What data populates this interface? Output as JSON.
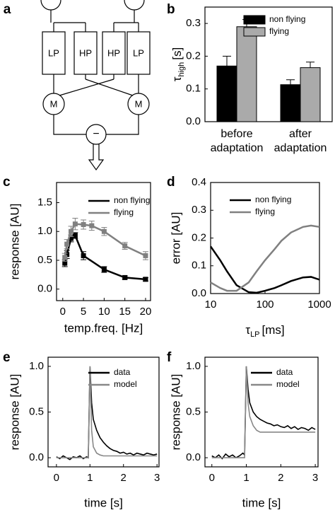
{
  "diagram": {
    "label": "a",
    "blocks": [
      "LP",
      "HP",
      "HP",
      "LP"
    ],
    "multipliers": [
      "M",
      "M"
    ],
    "subtractor": "−"
  },
  "chart_data": [
    {
      "type": "bar",
      "panel_label": "b",
      "ylabel": {
        "symbol": "τ",
        "subscript": "high",
        "unit": "[s]"
      },
      "categories": [
        "before adaptation",
        "after adaptation"
      ],
      "series": [
        {
          "name": "non flying",
          "color": "#000000",
          "values": [
            0.17,
            0.113
          ],
          "errors": [
            0.03,
            0.015
          ]
        },
        {
          "name": "flying",
          "color": "#aaaaaa",
          "values": [
            0.29,
            0.165
          ],
          "errors": [
            0.022,
            0.017
          ]
        }
      ],
      "ylim": [
        0,
        0.35
      ],
      "yticks": [
        {
          "value": 0,
          "label": "0.0"
        },
        {
          "value": 0.1,
          "label": "0.1"
        },
        {
          "value": 0.2,
          "label": "0.2"
        },
        {
          "value": 0.3,
          "label": "0.3"
        }
      ]
    },
    {
      "type": "line",
      "panel_label": "c",
      "xlabel": "temp.freq. [Hz]",
      "ylabel": "response [AU]",
      "marker": "square",
      "series": [
        {
          "name": "non flying",
          "color": "#000000",
          "x": [
            0.5,
            1,
            2,
            3,
            5,
            10,
            15,
            20
          ],
          "values": [
            0.45,
            0.6,
            0.88,
            0.93,
            0.58,
            0.34,
            0.2,
            0.17
          ],
          "errors": [
            0.06,
            0.07,
            0.06,
            0.05,
            0.07,
            0.05,
            0.03,
            0.03
          ]
        },
        {
          "name": "flying",
          "color": "#808080",
          "x": [
            0.5,
            1,
            2,
            3,
            5,
            7,
            10,
            15,
            20
          ],
          "values": [
            0.55,
            0.78,
            1.0,
            1.13,
            1.12,
            1.1,
            1.0,
            0.75,
            0.58
          ],
          "errors": [
            0.07,
            0.08,
            0.09,
            0.1,
            0.08,
            0.08,
            0.07,
            0.06,
            0.07
          ]
        }
      ],
      "xlim": [
        -1.5,
        21.2
      ],
      "xticks": [
        0,
        5,
        10,
        15,
        20
      ],
      "ylim": [
        -0.2,
        1.85
      ],
      "yticks": [
        {
          "value": 0,
          "label": "0.0"
        },
        {
          "value": 0.5,
          "label": "0.5"
        },
        {
          "value": 1,
          "label": "1.0"
        },
        {
          "value": 1.5,
          "label": "1.5"
        }
      ]
    },
    {
      "type": "line",
      "panel_label": "d",
      "xlabel": {
        "symbol": "τ",
        "subscript": "LP",
        "unit": "[ms]"
      },
      "ylabel": "error [AU]",
      "xscale": "log",
      "x": [
        10,
        15,
        20,
        30,
        50,
        70,
        100,
        150,
        200,
        300,
        500,
        700,
        1000
      ],
      "series": [
        {
          "name": "non flying",
          "color": "#000000",
          "values": [
            0.17,
            0.12,
            0.08,
            0.03,
            0.005,
            0.003,
            0.01,
            0.02,
            0.03,
            0.045,
            0.058,
            0.06,
            0.05
          ]
        },
        {
          "name": "flying",
          "color": "#808080",
          "values": [
            0.04,
            0.02,
            0.01,
            0.01,
            0.04,
            0.08,
            0.12,
            0.16,
            0.19,
            0.22,
            0.24,
            0.245,
            0.24
          ]
        }
      ],
      "xlim": [
        10,
        1000
      ],
      "xticks": [
        10,
        100,
        1000
      ],
      "ylim": [
        0,
        0.4
      ],
      "yticks": [
        {
          "value": 0,
          "label": "0.0"
        },
        {
          "value": 0.1,
          "label": "0.1"
        },
        {
          "value": 0.2,
          "label": "0.2"
        },
        {
          "value": 0.3,
          "label": "0.3"
        },
        {
          "value": 0.4,
          "label": "0.4"
        }
      ]
    },
    {
      "type": "line",
      "panel_label": "e",
      "xlabel": "time [s]",
      "ylabel": "response [AU]",
      "x": [
        0,
        0.1,
        0.2,
        0.3,
        0.4,
        0.5,
        0.6,
        0.7,
        0.8,
        0.9,
        0.95,
        1,
        1.05,
        1.1,
        1.2,
        1.3,
        1.4,
        1.5,
        1.6,
        1.7,
        1.8,
        1.9,
        2,
        2.1,
        2.2,
        2.3,
        2.4,
        2.5,
        2.6,
        2.7,
        2.8,
        2.9,
        3
      ],
      "series": [
        {
          "name": "data",
          "color": "#000000",
          "values": [
            0.01,
            -0.01,
            0.02,
            0,
            -0.02,
            0.01,
            0,
            0.02,
            -0.01,
            0.01,
            0,
            1.0,
            0.6,
            0.42,
            0.3,
            0.22,
            0.17,
            0.13,
            0.1,
            0.08,
            0.07,
            0.05,
            0.06,
            0.04,
            0.05,
            0.03,
            0.05,
            0.04,
            0.03,
            0.05,
            0.04,
            0.03,
            0.04
          ]
        },
        {
          "name": "model",
          "color": "#888888",
          "values": [
            0,
            0,
            0,
            0,
            0,
            0,
            0,
            0,
            0,
            0,
            0,
            1.0,
            0.3,
            0.12,
            0.05,
            0.03,
            0.02,
            0.02,
            0.02,
            0.02,
            0.02,
            0.02,
            0.02,
            0.02,
            0.02,
            0.02,
            0.02,
            0.02,
            0.02,
            0.02,
            0.02,
            0.02,
            0.02
          ]
        }
      ],
      "xlim": [
        -0.25,
        3.06
      ],
      "xticks": [
        0,
        1,
        2,
        3
      ],
      "ylim": [
        -0.1,
        1.1
      ],
      "yticks": [
        {
          "value": 0,
          "label": "0.0"
        },
        {
          "value": 0.5,
          "label": "0.5"
        },
        {
          "value": 1,
          "label": "1.0"
        }
      ]
    },
    {
      "type": "line",
      "panel_label": "f",
      "xlabel": "time [s]",
      "ylabel": "response [AU]",
      "x": [
        0,
        0.1,
        0.2,
        0.3,
        0.4,
        0.5,
        0.6,
        0.7,
        0.8,
        0.9,
        0.95,
        1,
        1.05,
        1.1,
        1.2,
        1.3,
        1.4,
        1.5,
        1.6,
        1.7,
        1.8,
        1.9,
        2,
        2.1,
        2.2,
        2.3,
        2.4,
        2.5,
        2.6,
        2.7,
        2.8,
        2.9,
        3
      ],
      "series": [
        {
          "name": "data",
          "color": "#000000",
          "values": [
            0.02,
            0,
            0.03,
            -0.01,
            0.04,
            0.01,
            0.03,
            0,
            0.02,
            0.05,
            0.03,
            1.0,
            0.75,
            0.6,
            0.5,
            0.45,
            0.42,
            0.4,
            0.38,
            0.37,
            0.35,
            0.36,
            0.34,
            0.33,
            0.35,
            0.32,
            0.34,
            0.31,
            0.33,
            0.32,
            0.3,
            0.33,
            0.31
          ]
        },
        {
          "name": "model",
          "color": "#888888",
          "values": [
            0,
            0,
            0,
            0,
            0,
            0,
            0,
            0,
            0,
            0,
            0,
            1.0,
            0.6,
            0.45,
            0.35,
            0.3,
            0.28,
            0.28,
            0.28,
            0.28,
            0.28,
            0.28,
            0.28,
            0.28,
            0.28,
            0.28,
            0.28,
            0.28,
            0.28,
            0.28,
            0.28,
            0.28,
            0.28
          ]
        }
      ],
      "xlim": [
        -0.2,
        3.08
      ],
      "xticks": [
        0,
        1,
        2,
        3
      ],
      "ylim": [
        -0.1,
        1.1
      ],
      "yticks": [
        {
          "value": 0,
          "label": "0.0"
        },
        {
          "value": 0.5,
          "label": "0.5"
        },
        {
          "value": 1,
          "label": "1.0"
        }
      ]
    }
  ]
}
